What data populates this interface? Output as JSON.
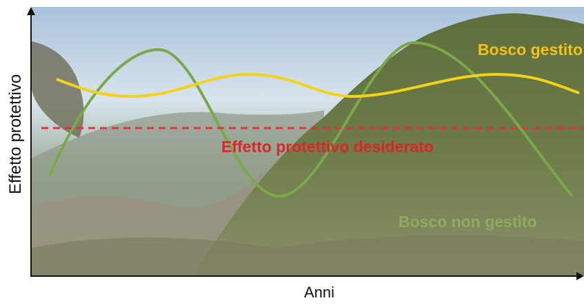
{
  "axes": {
    "y_label": "Effetto protettivo",
    "x_label": "Anni"
  },
  "curves": {
    "managed": "Bosco gestito",
    "threshold": "Effetto protettivo desiderato",
    "unmanaged": "Bosco non gestito"
  }
}
